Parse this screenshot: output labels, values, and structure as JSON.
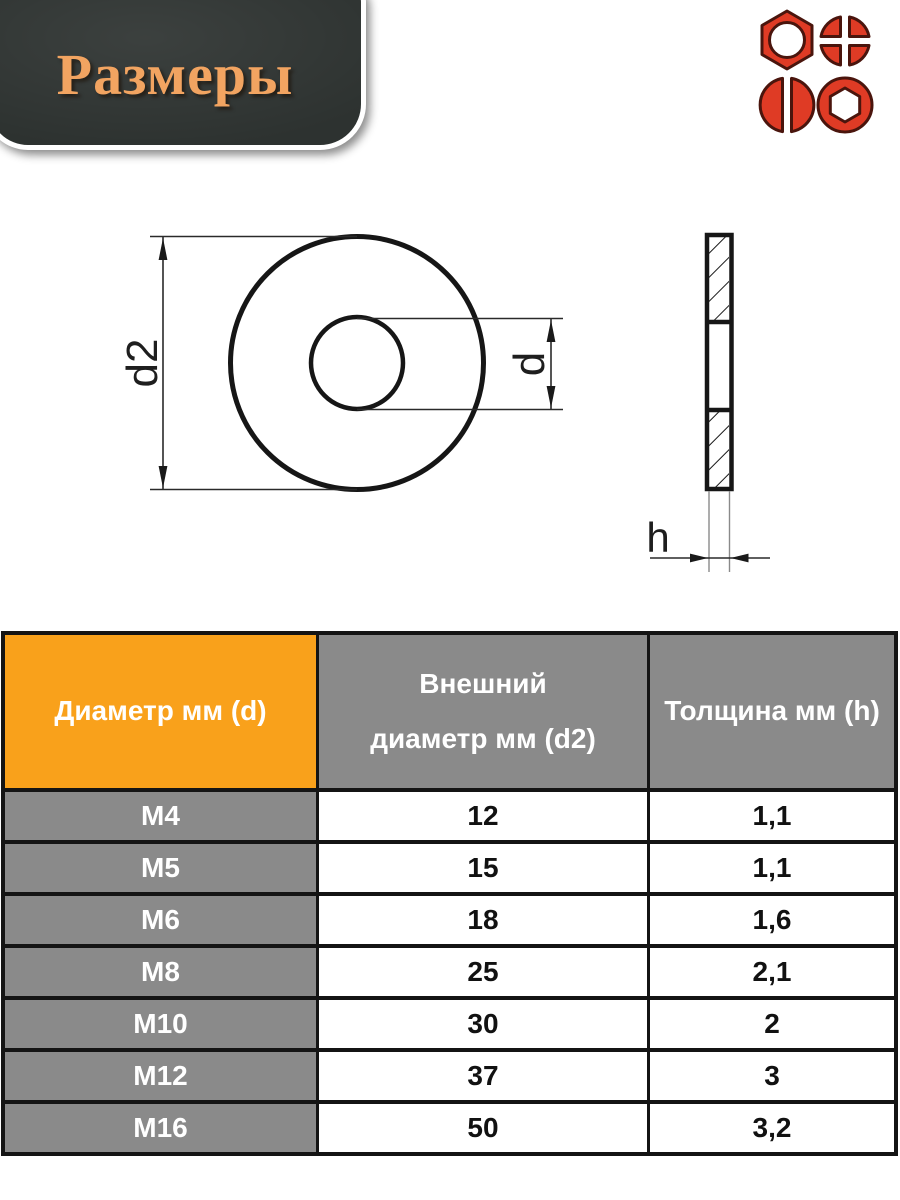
{
  "banner": {
    "title": "Размеры"
  },
  "logo": {
    "color": "#df3b25",
    "outline_color": "#4a150d",
    "icons": [
      {
        "name": "hex-nut-icon"
      },
      {
        "name": "phillips-head-icon"
      },
      {
        "name": "slotted-head-icon"
      },
      {
        "name": "hex-socket-icon"
      }
    ]
  },
  "drawing": {
    "labels": {
      "outer_diameter": "d2",
      "inner_diameter": "d",
      "thickness": "h"
    }
  },
  "table": {
    "headers": [
      "Диаметр мм (d)",
      "Внешний\nдиаметр мм (d2)",
      "Толщина мм (h)"
    ],
    "rows": [
      [
        "M4",
        "12",
        "1,1"
      ],
      [
        "M5",
        "15",
        "1,1"
      ],
      [
        "M6",
        "18",
        "1,6"
      ],
      [
        "M8",
        "25",
        "2,1"
      ],
      [
        "M10",
        "30",
        "2"
      ],
      [
        "M12",
        "37",
        "3"
      ],
      [
        "M16",
        "50",
        "3,2"
      ]
    ]
  },
  "colors": {
    "accent_orange": "#f9a11b",
    "header_gray": "#8a8a8a",
    "table_border_black": "#141414",
    "banner_background": "#2d3230",
    "banner_text_orange": "#f2a461",
    "logo_red": "#df3b25"
  }
}
